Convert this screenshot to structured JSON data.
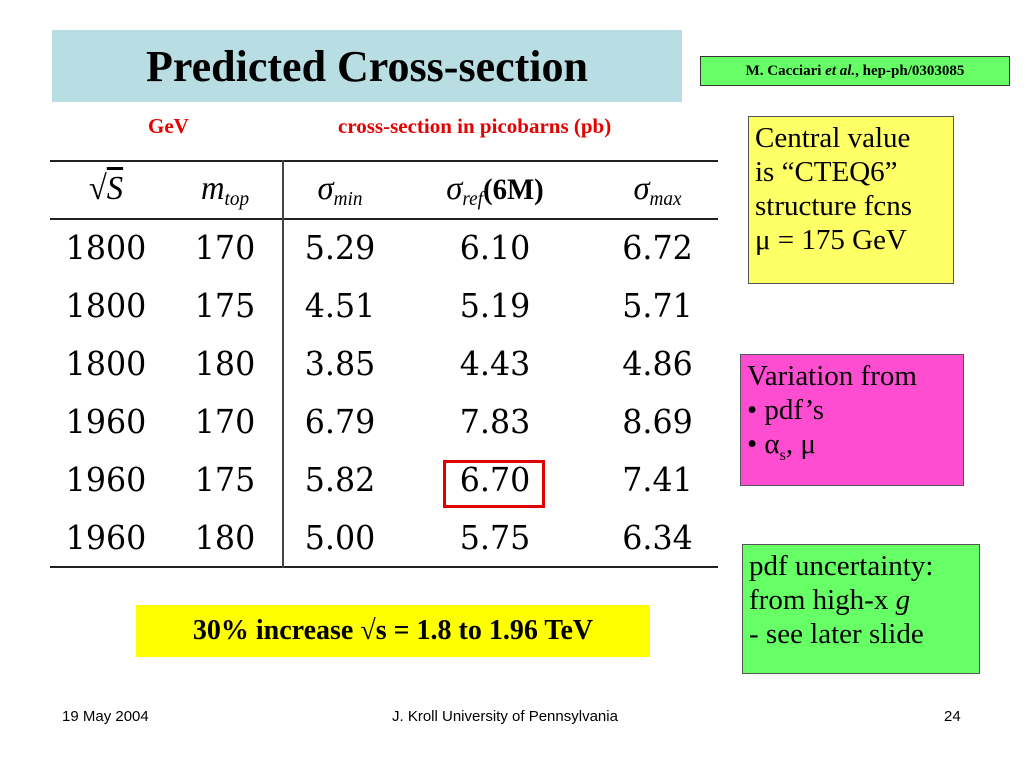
{
  "title": "Predicted Cross-section",
  "reference": {
    "author": "M. Cacciari",
    "etal": "et al.",
    "rest": ", hep-ph/0303085"
  },
  "units": {
    "gev": "GeV",
    "xsec": "cross-section in picobarns (pb)"
  },
  "table": {
    "headers": {
      "sqrt_s": "S",
      "m_top": "m",
      "m_top_sub": "top",
      "sigma_min": "σ",
      "sigma_min_sub": "min",
      "sigma_ref": "σ",
      "sigma_ref_sub": "ref",
      "sigma_ref_tag": "(6M)",
      "sigma_max": "σ",
      "sigma_max_sub": "max"
    },
    "rows": [
      [
        "1800",
        "170",
        "5.29",
        "6.10",
        "6.72"
      ],
      [
        "1800",
        "175",
        "4.51",
        "5.19",
        "5.71"
      ],
      [
        "1800",
        "180",
        "3.85",
        "4.43",
        "4.86"
      ],
      [
        "1960",
        "170",
        "6.79",
        "7.83",
        "8.69"
      ],
      [
        "1960",
        "175",
        "5.82",
        "6.70",
        "7.41"
      ],
      [
        "1960",
        "180",
        "5.00",
        "5.75",
        "6.34"
      ]
    ]
  },
  "notes": {
    "central": [
      "Central value",
      "is “CTEQ6”",
      "structure fcns",
      "μ = 175 GeV"
    ],
    "variation": {
      "line1": "Variation from",
      "line2": "• pdf’s",
      "line3_pre": "• α",
      "line3_sub": "s",
      "line3_post": ", μ"
    },
    "pdf": {
      "line1": "pdf uncertainty:",
      "line2_pre": "from high-x ",
      "line2_g": "g",
      "line3": "- see later slide"
    }
  },
  "increase": "30% increase √s = 1.8 to 1.96 TeV",
  "footer": {
    "date": "19 May 2004",
    "author": "J. Kroll University of Pennsylvania",
    "page": "24"
  }
}
